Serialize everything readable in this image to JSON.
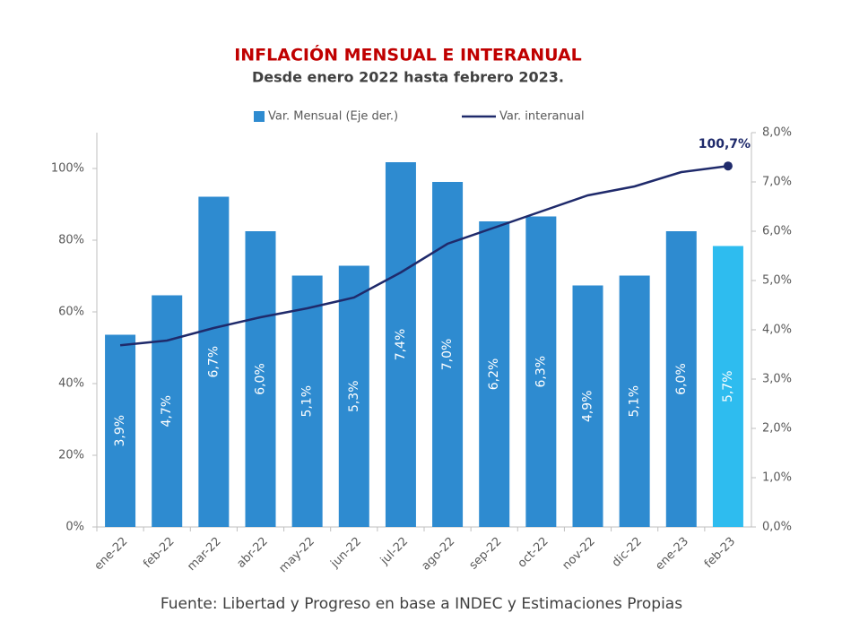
{
  "chart_data": {
    "type": "bar_line",
    "title": "INFLACIÓN  MENSUAL E INTERANUAL",
    "subtitle": "Desde enero 2022 hasta febrero 2023.",
    "source": "Fuente: Libertad y Progreso en base a INDEC y Estimaciones Propias",
    "categories": [
      "ene-22",
      "feb-22",
      "mar-22",
      "abr-22",
      "may-22",
      "jun-22",
      "jul-22",
      "ago-22",
      "sep-22",
      "oct-22",
      "nov-22",
      "dic-22",
      "ene-23",
      "feb-23"
    ],
    "series": [
      {
        "name": "Var. Mensual (Eje der.)",
        "type": "bar",
        "axis": "y2",
        "color": "#2e8bd0",
        "colors": [
          "#2e8bd0",
          "#2e8bd0",
          "#2e8bd0",
          "#2e8bd0",
          "#2e8bd0",
          "#2e8bd0",
          "#2e8bd0",
          "#2e8bd0",
          "#2e8bd0",
          "#2e8bd0",
          "#2e8bd0",
          "#2e8bd0",
          "#2e8bd0",
          "#2ebcef"
        ],
        "values": [
          3.9,
          4.7,
          6.7,
          6.0,
          5.1,
          5.3,
          7.4,
          7.0,
          6.2,
          6.3,
          4.9,
          5.1,
          6.0,
          5.7
        ],
        "value_labels": [
          "3,9%",
          "4,7%",
          "6,7%",
          "6,0%",
          "5,1%",
          "5,3%",
          "7,4%",
          "7,0%",
          "6,2%",
          "6,3%",
          "4,9%",
          "5,1%",
          "6,0%",
          "5,7%"
        ]
      },
      {
        "name": "Var. interanual",
        "type": "line",
        "color": "#1f2a6b",
        "values": [
          50.7,
          52,
          55.5,
          58.5,
          61,
          64,
          71,
          79,
          83.5,
          88,
          92.5,
          95,
          99,
          100.7
        ]
      }
    ],
    "annotation": "100,7%",
    "ylim": [
      0,
      110
    ],
    "yticks": [
      {
        "value": 0,
        "label": "0%"
      },
      {
        "value": 20,
        "label": "20%"
      },
      {
        "value": 40,
        "label": "40%"
      },
      {
        "value": 60,
        "label": "60%"
      },
      {
        "value": 80,
        "label": "80%"
      },
      {
        "value": 100,
        "label": "100%"
      }
    ],
    "y2lim": [
      0,
      8
    ],
    "y2ticks": [
      {
        "value": 0,
        "label": "0,0%"
      },
      {
        "value": 1,
        "label": "1,0%"
      },
      {
        "value": 2,
        "label": "2,0%"
      },
      {
        "value": 3,
        "label": "3,0%"
      },
      {
        "value": 4,
        "label": "4,0%"
      },
      {
        "value": 5,
        "label": "5,0%"
      },
      {
        "value": 6,
        "label": "6,0%"
      },
      {
        "value": 7,
        "label": "7,0%"
      },
      {
        "value": 8,
        "label": "8,0%"
      }
    ],
    "legend": "top"
  }
}
